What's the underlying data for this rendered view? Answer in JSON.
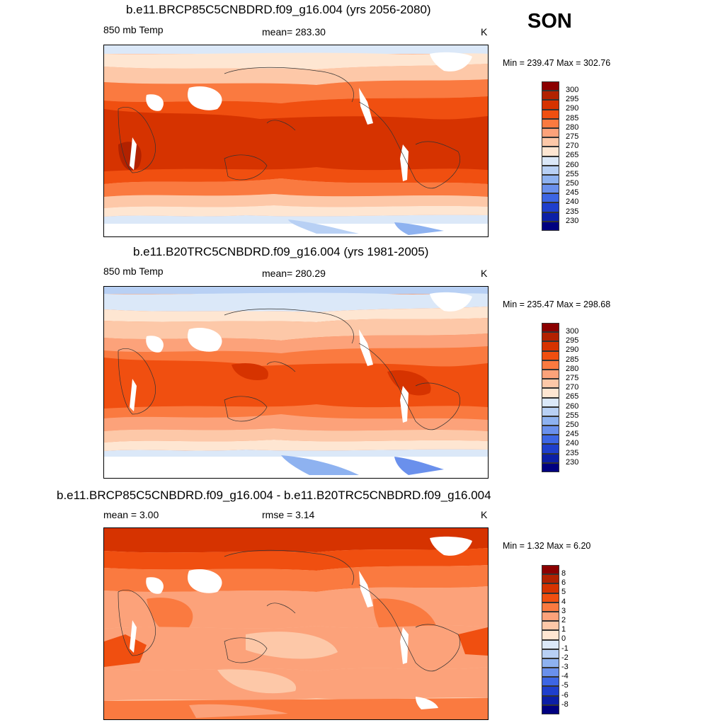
{
  "season": "SON",
  "units": "K",
  "panels": [
    {
      "title": "b.e11.BRCP85C5CNBDRD.f09_g16.004 (yrs 2056-2080)",
      "left_label": "850 mb Temp",
      "center_label": "mean= 283.30",
      "units": "K",
      "minmax": "Min = 239.47 Max = 302.76",
      "colorbar_labels": [
        "300",
        "295",
        "290",
        "285",
        "280",
        "275",
        "270",
        "265",
        "260",
        "255",
        "250",
        "245",
        "240",
        "235",
        "230"
      ]
    },
    {
      "title": "b.e11.B20TRC5CNBDRD.f09_g16.004 (yrs 1981-2005)",
      "left_label": "850 mb Temp",
      "center_label": "mean= 280.29",
      "units": "K",
      "minmax": "Min = 235.47 Max = 298.68",
      "colorbar_labels": [
        "300",
        "295",
        "290",
        "285",
        "280",
        "275",
        "270",
        "265",
        "260",
        "255",
        "250",
        "245",
        "240",
        "235",
        "230"
      ]
    },
    {
      "title": "b.e11.BRCP85C5CNBDRD.f09_g16.004 - b.e11.B20TRC5CNBDRD.f09_g16.004",
      "left_label": "mean =   3.00",
      "center_label": "rmse =   3.14",
      "units": "K",
      "minmax": "Min =   1.32 Max =   6.20",
      "colorbar_labels": [
        "8",
        "6",
        "5",
        "4",
        "3",
        "2",
        "1",
        "0",
        "-1",
        "-2",
        "-3",
        "-4",
        "-5",
        "-6",
        "-8"
      ]
    }
  ],
  "colors": {
    "abs_scale": [
      "#8b0000",
      "#b22200",
      "#d63300",
      "#f04f10",
      "#fa7a40",
      "#fca27a",
      "#fdc8a8",
      "#fee6d2",
      "#dbe8f8",
      "#b8d0f4",
      "#8eb2f0",
      "#6a90ec",
      "#3d66e4",
      "#1f3fcc",
      "#0c1fa6",
      "#000080"
    ],
    "diff_scale": [
      "#8b0000",
      "#b22200",
      "#d63300",
      "#f04f10",
      "#fa7a40",
      "#fca27a",
      "#fdc8a8",
      "#fee6d2",
      "#dbe8f8",
      "#b8d0f4",
      "#8eb2f0",
      "#6a90ec",
      "#3d66e4",
      "#1f3fcc",
      "#0c1fa6",
      "#000080"
    ]
  }
}
